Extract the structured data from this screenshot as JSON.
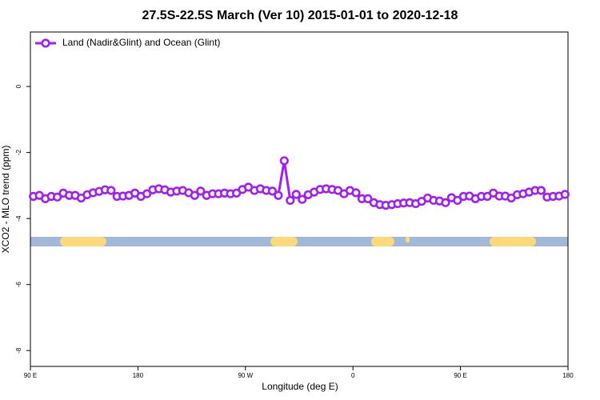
{
  "chart_data": {
    "type": "line",
    "title": "27.5S-22.5S March (Ver 10)   2015-01-01 to 2020-12-18",
    "x_label": "Longitude (deg E)",
    "y_label": "XCO2 - MLO trend (ppm)",
    "xlim": [
      90,
      540
    ],
    "xticks": [
      {
        "value": 90,
        "label": "90 E"
      },
      {
        "value": 180,
        "label": "180"
      },
      {
        "value": 270,
        "label": "90 W"
      },
      {
        "value": 360,
        "label": "0"
      },
      {
        "value": 450,
        "label": "90 E"
      },
      {
        "value": 540,
        "label": "180"
      }
    ],
    "ylim": [
      -8.48,
      1.65
    ],
    "yticks": [
      0,
      -2,
      -4,
      -6,
      -8
    ],
    "legend": "top-left",
    "series": [
      {
        "name": "Land (Nadir&Glint) and Ocean (Glint)",
        "color": "#a020f0",
        "x": [
          92.5,
          97.5,
          102.5,
          107.5,
          112.5,
          117.5,
          122.5,
          127.5,
          132.5,
          137.5,
          142.5,
          147.5,
          152.5,
          157.5,
          162.5,
          167.5,
          172.5,
          177.5,
          182.5,
          187.5,
          192.5,
          197.5,
          202.5,
          207.5,
          212.5,
          217.5,
          222.5,
          227.5,
          232.5,
          237.5,
          242.5,
          247.5,
          252.5,
          257.5,
          262.5,
          267.5,
          272.5,
          277.5,
          282.5,
          287.5,
          292.5,
          297.5,
          302.5,
          307.5,
          312.5,
          317.5,
          322.5,
          327.5,
          332.5,
          337.5,
          342.5,
          347.5,
          352.5,
          357.5,
          362.5,
          367.5,
          372.5,
          377.5,
          382.5,
          387.5,
          392.5,
          397.5,
          402.5,
          407.5,
          412.5,
          417.5,
          422.5,
          427.5,
          432.5,
          437.5,
          442.5,
          447.5,
          452.5,
          457.5,
          462.5,
          467.5,
          472.5,
          477.5,
          482.5,
          487.5,
          492.5,
          497.5,
          502.5,
          507.5,
          512.5,
          517.5,
          522.5,
          527.5,
          532.5,
          537.5
        ],
        "values": [
          -3.33,
          -3.3,
          -3.4,
          -3.33,
          -3.35,
          -3.23,
          -3.3,
          -3.3,
          -3.38,
          -3.28,
          -3.22,
          -3.18,
          -3.13,
          -3.15,
          -3.33,
          -3.32,
          -3.3,
          -3.23,
          -3.33,
          -3.25,
          -3.13,
          -3.1,
          -3.13,
          -3.2,
          -3.17,
          -3.15,
          -3.22,
          -3.3,
          -3.17,
          -3.3,
          -3.25,
          -3.25,
          -3.23,
          -3.25,
          -3.23,
          -3.12,
          -3.05,
          -3.15,
          -3.1,
          -3.15,
          -3.17,
          -3.3,
          -2.25,
          -3.45,
          -3.27,
          -3.42,
          -3.28,
          -3.2,
          -3.12,
          -3.1,
          -3.12,
          -3.15,
          -3.25,
          -3.15,
          -3.22,
          -3.4,
          -3.4,
          -3.52,
          -3.58,
          -3.6,
          -3.58,
          -3.55,
          -3.53,
          -3.52,
          -3.55,
          -3.48,
          -3.38,
          -3.45,
          -3.47,
          -3.52,
          -3.37,
          -3.45,
          -3.33,
          -3.32,
          -3.4,
          -3.33,
          -3.33,
          -3.23,
          -3.32,
          -3.32,
          -3.38,
          -3.28,
          -3.25,
          -3.2,
          -3.15,
          -3.15,
          -3.35,
          -3.33,
          -3.32,
          -3.27
        ]
      }
    ]
  }
}
